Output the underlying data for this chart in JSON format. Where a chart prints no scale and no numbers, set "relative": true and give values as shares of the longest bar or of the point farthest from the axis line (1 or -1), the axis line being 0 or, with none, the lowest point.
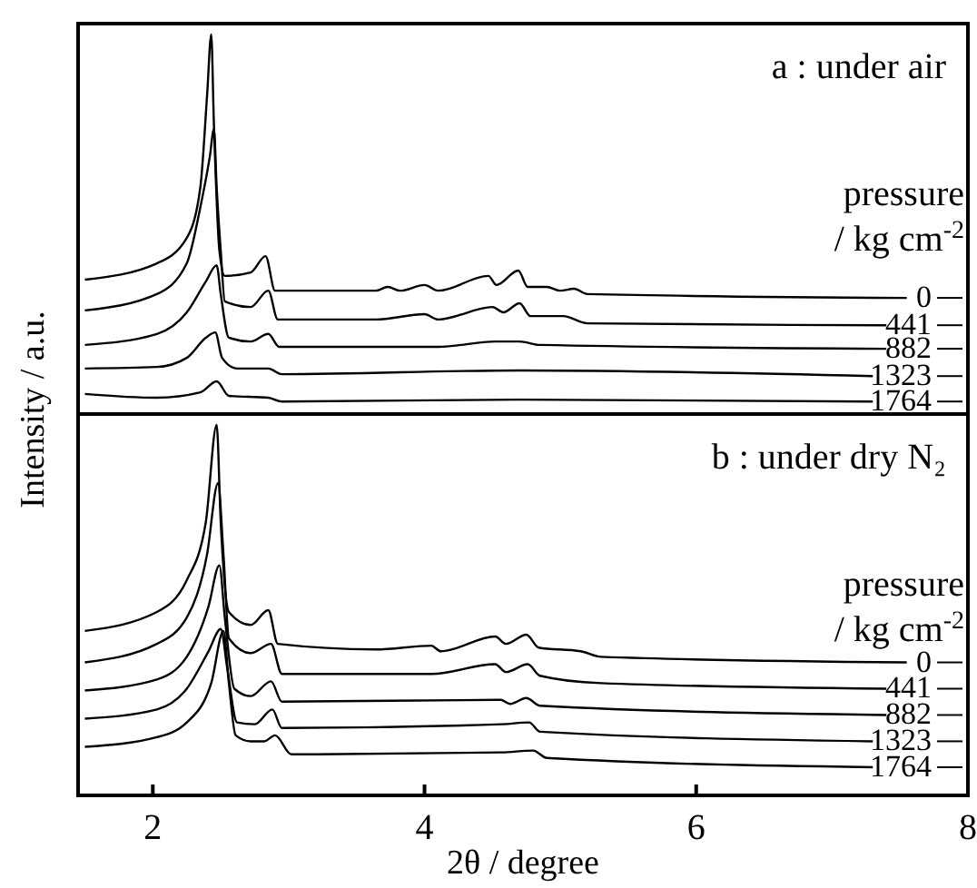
{
  "chart_data": [
    {
      "type": "line",
      "title": "a : under air",
      "ylabel": "Intensity / a.u.",
      "legend_title": "pressure\n/ kg cm$^{-2}$",
      "relative": true,
      "xlim": [
        1.45,
        8
      ],
      "tick_labels": false,
      "legend": "right",
      "marker": "none",
      "line_style": "solid",
      "series": [
        {
          "name": "0",
          "color": "#000000",
          "x": [
            1.5,
            2.03,
            2.25,
            2.35,
            2.4,
            2.43,
            2.45,
            2.49,
            2.53,
            2.72,
            2.83,
            2.9,
            3.64,
            3.73,
            3.82,
            4.0,
            4.1,
            4.47,
            4.53,
            4.69,
            4.76,
            4.9,
            5.0,
            5.1,
            5.2,
            7.55
          ],
          "values": [
            0.354,
            0.397,
            0.464,
            0.598,
            0.842,
            1,
            0.761,
            0.431,
            0.364,
            0.373,
            0.416,
            0.325,
            0.325,
            0.335,
            0.325,
            0.34,
            0.325,
            0.364,
            0.34,
            0.378,
            0.335,
            0.335,
            0.325,
            0.33,
            0.316,
            0.306
          ]
        },
        {
          "name": "441",
          "color": "#000000",
          "x": [
            1.5,
            2.03,
            2.25,
            2.35,
            2.42,
            2.45,
            2.47,
            2.5,
            2.53,
            2.72,
            2.85,
            2.92,
            3.64,
            4.0,
            4.1,
            4.5,
            4.58,
            4.7,
            4.78,
            5.02,
            5.2,
            7.4
          ],
          "values": [
            0.273,
            0.316,
            0.397,
            0.545,
            0.679,
            0.751,
            0.598,
            0.431,
            0.297,
            0.282,
            0.325,
            0.249,
            0.249,
            0.263,
            0.249,
            0.282,
            0.268,
            0.292,
            0.258,
            0.258,
            0.239,
            0.234
          ]
        },
        {
          "name": "882",
          "color": "#000000",
          "x": [
            1.5,
            2.03,
            2.25,
            2.39,
            2.47,
            2.5,
            2.56,
            2.72,
            2.85,
            2.93,
            4.1,
            4.52,
            4.7,
            4.85,
            7.4
          ],
          "values": [
            0.182,
            0.211,
            0.268,
            0.349,
            0.392,
            0.316,
            0.201,
            0.191,
            0.211,
            0.177,
            0.177,
            0.191,
            0.191,
            0.182,
            0.172
          ]
        },
        {
          "name": "1323",
          "color": "#000000",
          "x": [
            1.5,
            2.03,
            2.25,
            2.39,
            2.46,
            2.51,
            2.62,
            2.85,
            2.95,
            4.7,
            7.3
          ],
          "values": [
            0.12,
            0.124,
            0.148,
            0.201,
            0.215,
            0.148,
            0.12,
            0.12,
            0.105,
            0.115,
            0.1
          ]
        },
        {
          "name": "1764",
          "color": "#000000",
          "x": [
            1.5,
            2.03,
            2.35,
            2.47,
            2.56,
            2.85,
            2.95,
            4.7,
            7.3
          ],
          "values": [
            0.053,
            0.043,
            0.057,
            0.086,
            0.048,
            0.043,
            0.033,
            0.038,
            0.033
          ]
        }
      ]
    },
    {
      "type": "line",
      "title": "b : under dry N₂",
      "xlabel": "2θ / degree",
      "legend_title": "pressure\n/ kg cm$^{-2}$",
      "relative": true,
      "xlim": [
        1.45,
        8
      ],
      "xticks": [
        2,
        4,
        6,
        8
      ],
      "tick_labels": "x",
      "legend": "right",
      "marker": "none",
      "line_style": "solid",
      "series": [
        {
          "name": "0",
          "color": "#000000",
          "x": [
            1.5,
            2.03,
            2.25,
            2.39,
            2.47,
            2.5,
            2.56,
            2.72,
            2.85,
            2.92,
            3.64,
            4.05,
            4.12,
            4.52,
            4.6,
            4.75,
            4.84,
            5.15,
            5.3,
            7.55
          ],
          "values": [
            0.444,
            0.495,
            0.581,
            0.737,
            1,
            0.737,
            0.495,
            0.46,
            0.5,
            0.409,
            0.394,
            0.404,
            0.389,
            0.429,
            0.409,
            0.434,
            0.399,
            0.389,
            0.374,
            0.359
          ]
        },
        {
          "name": "441",
          "color": "#000000",
          "x": [
            1.5,
            2.03,
            2.25,
            2.4,
            2.48,
            2.52,
            2.56,
            2.72,
            2.87,
            2.95,
            4.05,
            4.52,
            4.6,
            4.76,
            4.85,
            5.3,
            7.4
          ],
          "values": [
            0.359,
            0.409,
            0.48,
            0.652,
            0.843,
            0.652,
            0.424,
            0.384,
            0.409,
            0.328,
            0.328,
            0.354,
            0.333,
            0.354,
            0.323,
            0.303,
            0.288
          ]
        },
        {
          "name": "882",
          "color": "#000000",
          "x": [
            1.5,
            2.03,
            2.25,
            2.41,
            2.49,
            2.53,
            2.6,
            2.72,
            2.87,
            2.95,
            4.56,
            4.63,
            4.75,
            4.85,
            7.4
          ],
          "values": [
            0.283,
            0.313,
            0.374,
            0.51,
            0.621,
            0.48,
            0.288,
            0.268,
            0.308,
            0.253,
            0.258,
            0.247,
            0.263,
            0.242,
            0.217
          ]
        },
        {
          "name": "1323",
          "color": "#000000",
          "x": [
            1.5,
            2.03,
            2.25,
            2.41,
            2.5,
            2.55,
            2.62,
            2.75,
            2.88,
            2.95,
            4.57,
            4.77,
            4.85,
            7.3
          ],
          "values": [
            0.207,
            0.232,
            0.288,
            0.389,
            0.449,
            0.338,
            0.197,
            0.192,
            0.232,
            0.182,
            0.192,
            0.197,
            0.172,
            0.146
          ]
        },
        {
          "name": "1764",
          "color": "#000000",
          "x": [
            1.5,
            2.03,
            2.25,
            2.43,
            2.52,
            2.56,
            2.61,
            2.72,
            2.82,
            2.9,
            3.02,
            4.57,
            4.8,
            4.9,
            7.3
          ],
          "values": [
            0.131,
            0.157,
            0.197,
            0.303,
            0.444,
            0.303,
            0.162,
            0.146,
            0.146,
            0.162,
            0.111,
            0.116,
            0.121,
            0.101,
            0.076
          ]
        }
      ]
    }
  ]
}
